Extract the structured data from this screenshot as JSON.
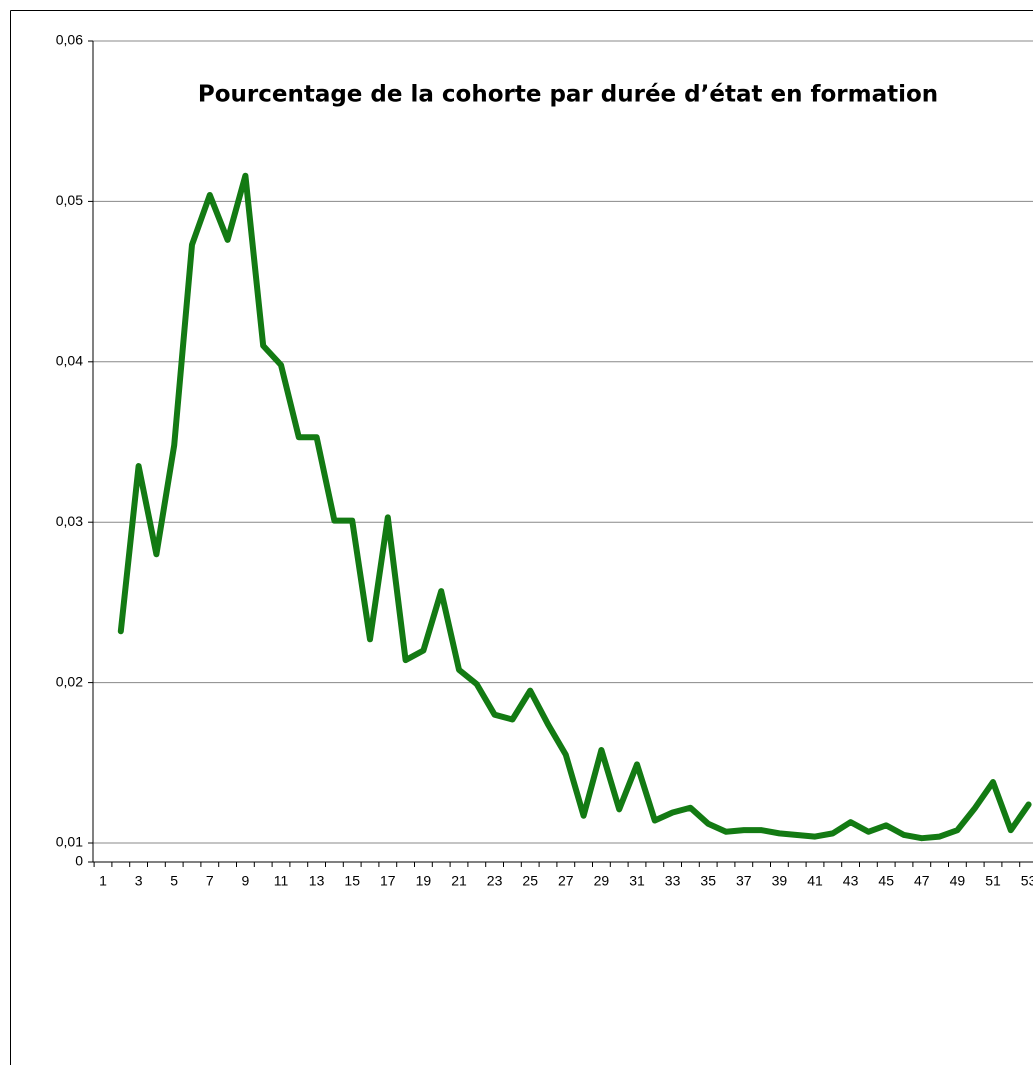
{
  "chart_data": {
    "type": "line",
    "title": "Pourcentage de la cohorte par durée d’état en formation",
    "categories": [
      1,
      null,
      3,
      null,
      5,
      null,
      7,
      null,
      9,
      null,
      11,
      null,
      13,
      null,
      15,
      null,
      17,
      null,
      19,
      null,
      21,
      null,
      23,
      null,
      25,
      null,
      27,
      null,
      29,
      null,
      31,
      null,
      33,
      null,
      35,
      null,
      37,
      null,
      39,
      null,
      41,
      null,
      43,
      null,
      45,
      null,
      47,
      null,
      49,
      null,
      51,
      null,
      53
    ],
    "series": [
      {
        "color": "#137a13",
        "values": [
          null,
          0.0232,
          0.0335,
          0.028,
          0.0348,
          0.0473,
          0.0504,
          0.0476,
          0.0516,
          0.041,
          0.0398,
          0.0353,
          0.0353,
          0.0301,
          0.0301,
          0.0227,
          0.0303,
          0.0214,
          0.022,
          0.0257,
          0.0208,
          0.0199,
          0.018,
          0.0177,
          0.0195,
          0.0174,
          0.0155,
          0.0117,
          0.0158,
          0.0121,
          0.0149,
          0.0114,
          0.0119,
          0.0122,
          0.0112,
          0.0107,
          0.0108,
          0.0108,
          0.0106,
          0.0105,
          0.0104,
          0.0106,
          0.0113,
          0.0107,
          0.0111,
          0.0105,
          0.0103,
          0.0104,
          0.0108,
          0.0122,
          0.0138,
          0.0108,
          0.0124
        ]
      }
    ],
    "ylim": [
      0,
      0.06
    ],
    "yticks": [
      0,
      {
        "value": 0.01,
        "label": "0,01"
      },
      {
        "value": 0.02,
        "label": "0,02"
      },
      {
        "value": 0.03,
        "label": "0,03"
      },
      {
        "value": 0.04,
        "label": "0,04"
      },
      {
        "value": 0.05,
        "label": "0,05"
      },
      {
        "value": 0.06,
        "label": "0,06"
      }
    ],
    "grid": true
  }
}
